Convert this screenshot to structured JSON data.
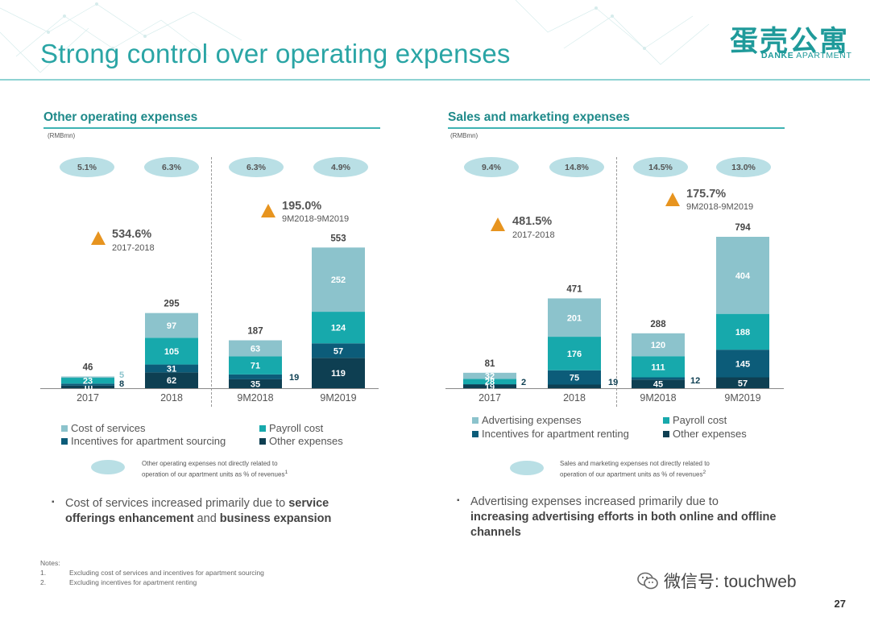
{
  "title": "Strong control over operating expenses",
  "logo": {
    "cn": "蛋壳公寓",
    "en_bold": "DANKE",
    "en_rest": " APARTMENT"
  },
  "colors": {
    "cost": "#8cc3cc",
    "payroll": "#17a9ac",
    "incentives": "#0c5c79",
    "other": "#0e3f52",
    "accent": "#2aa5a5",
    "triangle": "#e7941f"
  },
  "chart_data": [
    {
      "type": "bar",
      "stacked": true,
      "title": "Other operating expenses",
      "unit_label": "(RMBmn)",
      "categories": [
        "2017",
        "2018",
        "9M2018",
        "9M2019"
      ],
      "series": [
        {
          "name": "Other expenses",
          "values": [
            10,
            62,
            35,
            119
          ]
        },
        {
          "name": "Incentives for apartment sourcing",
          "values": [
            8,
            31,
            19,
            57
          ]
        },
        {
          "name": "Payroll cost",
          "values": [
            23,
            105,
            71,
            124
          ]
        },
        {
          "name": "Cost of services",
          "values": [
            5,
            97,
            63,
            252
          ]
        }
      ],
      "bar_value_labels": [
        [
          "10",
          "8",
          "23",
          "5"
        ],
        [
          "62",
          "31",
          "105",
          "97"
        ],
        [
          "35",
          "19",
          "71",
          "63"
        ],
        [
          "119",
          "57",
          "124",
          "252"
        ]
      ],
      "totals": [
        "46",
        "295",
        "187",
        "553"
      ],
      "ratio_labels": [
        "5.1%",
        "6.3%",
        "6.3%",
        "4.9%"
      ],
      "growth": [
        {
          "value": "534.6%",
          "period": "2017-2018"
        },
        {
          "value": "195.0%",
          "period": "9M2018-9M2019"
        }
      ],
      "legend": [
        "Cost of services",
        "Payroll cost",
        "Incentives for apartment sourcing",
        "Other expenses"
      ],
      "ylim": [
        0,
        553
      ]
    },
    {
      "type": "bar",
      "stacked": true,
      "title": "Sales and marketing expenses",
      "unit_label": "(RMBmn)",
      "categories": [
        "2017",
        "2018",
        "9M2018",
        "9M2019"
      ],
      "series": [
        {
          "name": "Other expenses",
          "values": [
            19,
            19,
            45,
            57
          ]
        },
        {
          "name": "Incentives for apartment renting",
          "values": [
            2,
            75,
            12,
            145
          ]
        },
        {
          "name": "Payroll cost",
          "values": [
            28,
            176,
            111,
            188
          ]
        },
        {
          "name": "Advertising expenses",
          "values": [
            32,
            201,
            120,
            404
          ]
        }
      ],
      "bar_value_labels": [
        [
          "19",
          "2",
          "28",
          "32"
        ],
        [
          "19",
          "75",
          "176",
          "201"
        ],
        [
          "45",
          "12",
          "111",
          "120"
        ],
        [
          "57",
          "145",
          "188",
          "404"
        ]
      ],
      "totals": [
        "81",
        "471",
        "288",
        "794"
      ],
      "ratio_labels": [
        "9.4%",
        "14.8%",
        "14.5%",
        "13.0%"
      ],
      "growth": [
        {
          "value": "481.5%",
          "period": "2017-2018"
        },
        {
          "value": "175.7%",
          "period": "9M2018-9M2019"
        }
      ],
      "legend": [
        "Advertising expenses",
        "Payroll cost",
        "Incentives for apartment renting",
        "Other expenses"
      ],
      "ylim": [
        0,
        794
      ]
    }
  ],
  "left": {
    "note_line1": "Other operating expenses not directly related to",
    "note_line2": "operation of our apartment units as % of revenues",
    "note_sup": "1",
    "bullet_pre": "Cost of services increased primarily due to ",
    "bullet_b1": "service offerings enhancement",
    "bullet_mid": " and ",
    "bullet_b2": "business expansion"
  },
  "right": {
    "note_line1": "Sales and marketing expenses not directly related to",
    "note_line2": "operation of our apartment units as % of revenues",
    "note_sup": "2",
    "bullet_pre": "Advertising expenses increased primarily due to ",
    "bullet_b1": "increasing advertising efforts in both online and offline channels"
  },
  "notes": {
    "heading": "Notes:",
    "items": [
      {
        "num": "1.",
        "text": "Excluding cost of services and incentives for apartment sourcing"
      },
      {
        "num": "2.",
        "text": "Excluding incentives for apartment renting"
      }
    ]
  },
  "watermark": "微信号: touchweb",
  "page_number": "27"
}
